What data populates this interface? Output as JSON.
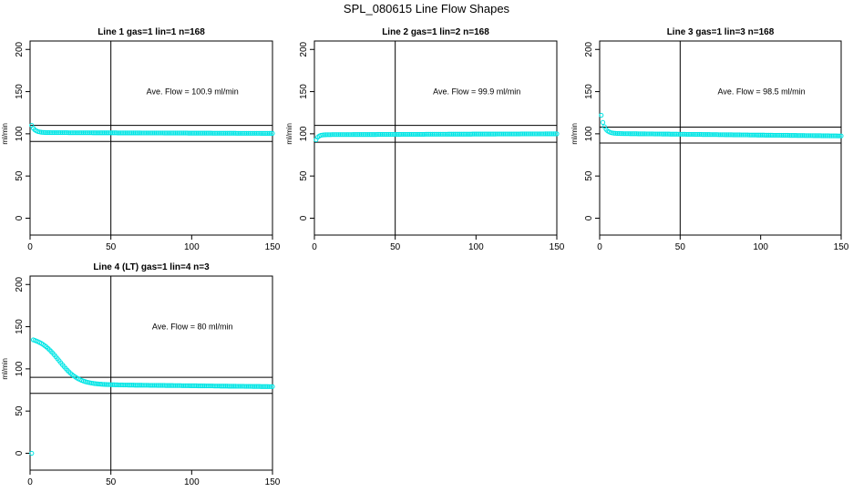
{
  "figure_title": "SPL_080615  Line Flow Shapes",
  "colors": {
    "points": "#00e5e5",
    "lines": "#000000"
  },
  "chart_data": [
    {
      "type": "scatter",
      "title": "Line 1 gas=1 lin=1 n=168",
      "ylabel": "ml/min",
      "xlim": [
        0,
        150
      ],
      "ylim": [
        -20,
        210
      ],
      "xticks": [
        0,
        50,
        100,
        150
      ],
      "yticks": [
        0,
        50,
        100,
        150,
        200
      ],
      "annotation": "Ave. Flow =  100.9  ml/min",
      "hlines": [
        110,
        91
      ],
      "vline": 50,
      "shape": {
        "start": 110,
        "spike_decay": 2,
        "plateau": 101.5,
        "end": 100.5,
        "warmup": 0,
        "warmup_end": 0,
        "n": 150
      }
    },
    {
      "type": "scatter",
      "title": "Line 2 gas=1 lin=2 n=168",
      "ylabel": "ml/min",
      "xlim": [
        0,
        150
      ],
      "ylim": [
        -20,
        210
      ],
      "xticks": [
        0,
        50,
        100,
        150
      ],
      "yticks": [
        0,
        50,
        100,
        150,
        200
      ],
      "annotation": "Ave. Flow =  99.9  ml/min",
      "hlines": [
        110,
        90
      ],
      "vline": 50,
      "shape": {
        "start": 93,
        "spike_decay": 1.5,
        "plateau": 99,
        "end": 100,
        "warmup": 0,
        "warmup_end": 0,
        "n": 150
      }
    },
    {
      "type": "scatter",
      "title": "Line 3 gas=1 lin=3 n=168",
      "ylabel": "ml/min",
      "xlim": [
        0,
        150
      ],
      "ylim": [
        -20,
        210
      ],
      "xticks": [
        0,
        50,
        100,
        150
      ],
      "yticks": [
        0,
        50,
        100,
        150,
        200
      ],
      "annotation": "Ave. Flow =  98.5  ml/min",
      "hlines": [
        108,
        89
      ],
      "vline": 50,
      "shape": {
        "start": 122,
        "spike_decay": 2,
        "plateau": 100.5,
        "end": 97.5,
        "warmup": 0,
        "warmup_end": 0,
        "n": 150
      }
    },
    {
      "type": "scatter",
      "title": "Line 4 (LT) gas=1 lin=4 n=3",
      "ylabel": "ml/min",
      "xlim": [
        0,
        150
      ],
      "ylim": [
        -20,
        210
      ],
      "xticks": [
        0,
        50,
        100,
        150
      ],
      "yticks": [
        0,
        50,
        100,
        150,
        200
      ],
      "annotation": "Ave. Flow =  80  ml/min",
      "hlines": [
        90,
        71
      ],
      "vline": 50,
      "shape": {
        "start": 0,
        "spike_decay": 0,
        "plateau": 82,
        "end": 79,
        "warmup": 138,
        "warmup_end": 38,
        "n": 150
      }
    }
  ]
}
